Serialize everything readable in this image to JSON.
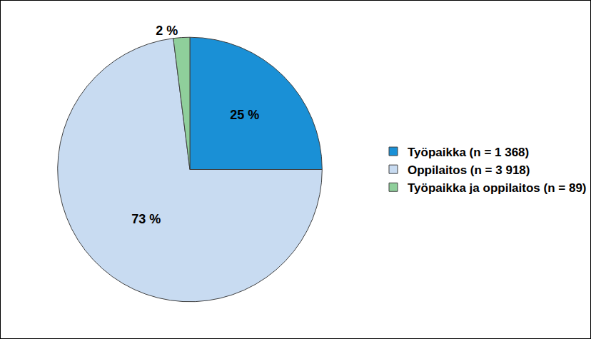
{
  "chart_data": {
    "type": "pie",
    "categories": [
      "Työpaikka (n = 1 368)",
      "Oppilaitos (n = 3 918)",
      "Työpaikka ja oppilaitos (n = 89)"
    ],
    "values": [
      25,
      73,
      2
    ],
    "value_labels": [
      "25 %",
      "73 %",
      "2 %"
    ],
    "colors": [
      "#1a90d6",
      "#c8dbf1",
      "#8fcf9b"
    ],
    "data_labels": true,
    "legend": "right"
  }
}
